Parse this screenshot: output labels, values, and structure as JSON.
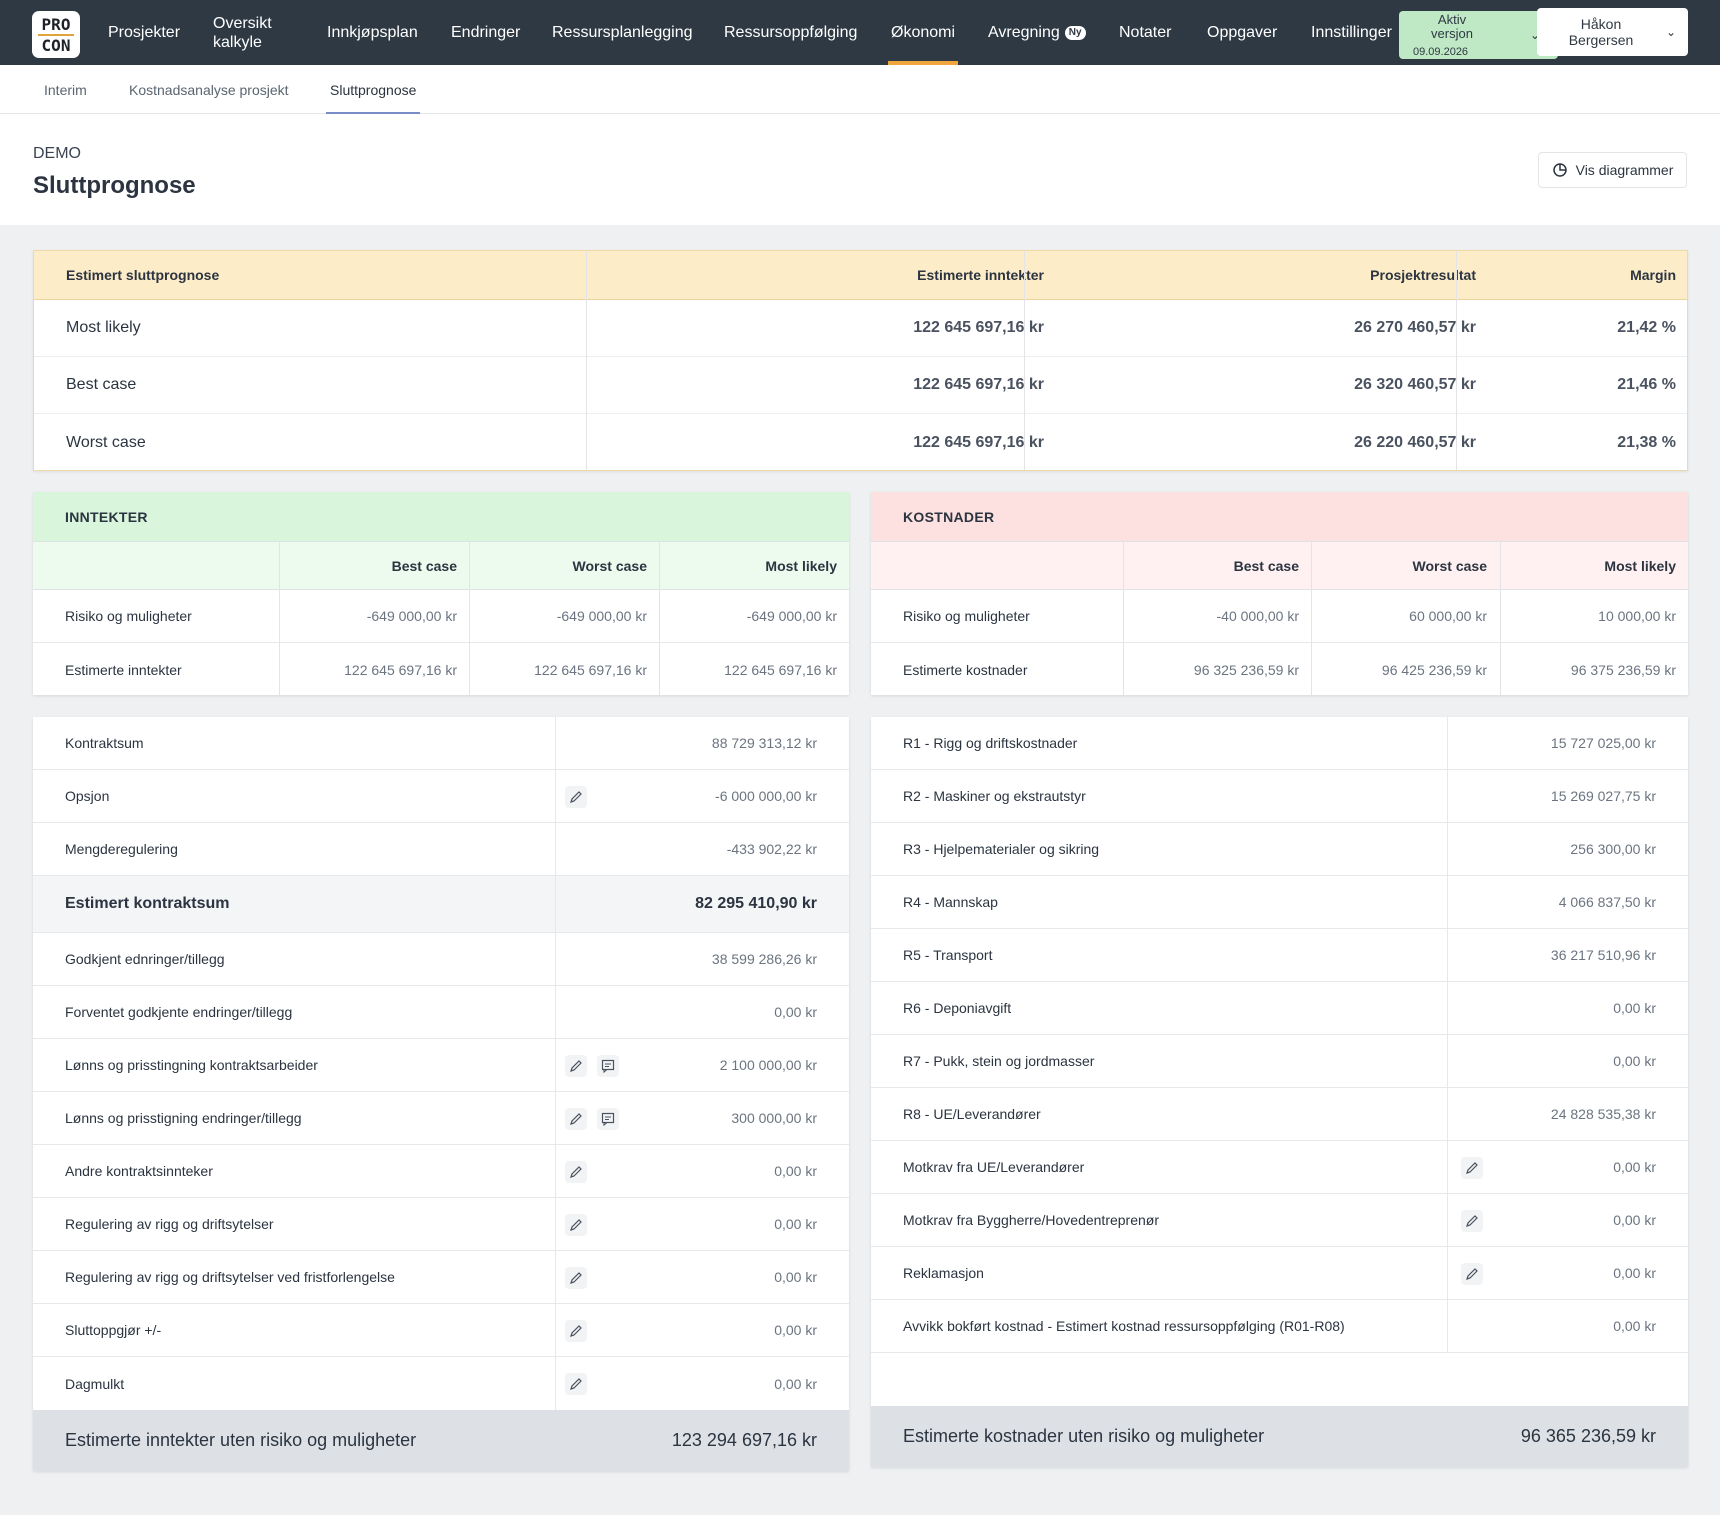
{
  "nav": {
    "logo_top": "PRO",
    "logo_bottom": "CON",
    "items": [
      "Prosjekter",
      "Oversikt kalkyle",
      "Innkjøpsplan",
      "Endringer",
      "Ressursplanlegging",
      "Ressursoppfølging",
      "Økonomi",
      "Avregning",
      "Notater",
      "Oppgaver",
      "Innstillinger"
    ],
    "badge": "Ny",
    "version_label": "Aktiv versjon",
    "version_date": "09.09.2026",
    "user_name": "Håkon Bergersen"
  },
  "subnav": {
    "tabs": [
      "Interim",
      "Kostnadsanalyse prosjekt",
      "Sluttprognose"
    ]
  },
  "header": {
    "project": "DEMO",
    "title": "Sluttprognose",
    "chart_button": "Vis diagrammer"
  },
  "summary": {
    "headers": [
      "Estimert sluttprognose",
      "Estimerte inntekter",
      "Prosjektresultat",
      "Margin"
    ],
    "rows": [
      {
        "label": "Most likely",
        "income": "122 645 697,16 kr",
        "result": "26 270 460,57 kr",
        "margin": "21,42 %"
      },
      {
        "label": "Best case",
        "income": "122 645 697,16 kr",
        "result": "26 320 460,57 kr",
        "margin": "21,46 %"
      },
      {
        "label": "Worst case",
        "income": "122 645 697,16 kr",
        "result": "26 220 460,57 kr",
        "margin": "21,38 %"
      }
    ]
  },
  "income_panel": {
    "title": "INNTEKTER",
    "headers": [
      "Best case",
      "Worst case",
      "Most likely"
    ],
    "rows": [
      {
        "label": "Risiko og muligheter",
        "best": "-649 000,00 kr",
        "worst": "-649 000,00 kr",
        "likely": "-649 000,00 kr"
      },
      {
        "label": "Estimerte inntekter",
        "best": "122 645 697,16 kr",
        "worst": "122 645 697,16 kr",
        "likely": "122 645 697,16 kr"
      }
    ]
  },
  "cost_panel": {
    "title": "KOSTNADER",
    "headers": [
      "Best case",
      "Worst case",
      "Most likely"
    ],
    "rows": [
      {
        "label": "Risiko og muligheter",
        "best": "-40 000,00 kr",
        "worst": "60 000,00 kr",
        "likely": "10 000,00 kr"
      },
      {
        "label": "Estimerte kostnader",
        "best": "96 325 236,59 kr",
        "worst": "96 425 236,59 kr",
        "likely": "96 375 236,59 kr"
      }
    ]
  },
  "income_list": {
    "rows": [
      {
        "label": "Kontraktsum",
        "value": "88 729 313,12 kr"
      },
      {
        "label": "Opsjon",
        "value": "-6 000 000,00 kr"
      },
      {
        "label": "Mengderegulering",
        "value": "-433 902,22 kr"
      },
      {
        "label": "Estimert kontraktsum",
        "value": "82 295 410,90 kr"
      },
      {
        "label": "Godkjent ednringer/tillegg",
        "value": "38 599 286,26 kr"
      },
      {
        "label": "Forventet godkjente endringer/tillegg",
        "value": "0,00 kr"
      },
      {
        "label": "Lønns og prisstingning kontraktsarbeider",
        "value": "2 100 000,00 kr"
      },
      {
        "label": "Lønns og prisstigning endringer/tillegg",
        "value": "300 000,00 kr"
      },
      {
        "label": "Andre kontraktsinnteker",
        "value": "0,00 kr"
      },
      {
        "label": "Regulering av rigg og driftsytelser",
        "value": "0,00 kr"
      },
      {
        "label": "Regulering av rigg og driftsytelser ved fristforlengelse",
        "value": "0,00 kr"
      },
      {
        "label": "Sluttoppgjør +/-",
        "value": "0,00 kr"
      },
      {
        "label": "Dagmulkt",
        "value": "0,00 kr"
      }
    ],
    "total_label": "Estimerte inntekter uten risiko og muligheter",
    "total_value": "123 294 697,16 kr"
  },
  "cost_list": {
    "rows": [
      {
        "label": "R1 - Rigg og driftskostnader",
        "value": "15 727 025,00 kr"
      },
      {
        "label": "R2 - Maskiner og ekstrautstyr",
        "value": "15 269 027,75 kr"
      },
      {
        "label": "R3 - Hjelpematerialer og sikring",
        "value": "256 300,00 kr"
      },
      {
        "label": "R4 - Mannskap",
        "value": "4 066 837,50 kr"
      },
      {
        "label": "R5 - Transport",
        "value": "36 217 510,96 kr"
      },
      {
        "label": "R6 - Deponiavgift",
        "value": "0,00 kr"
      },
      {
        "label": "R7 - Pukk, stein og jordmasser",
        "value": "0,00 kr"
      },
      {
        "label": "R8 - UE/Leverandører",
        "value": "24 828 535,38 kr"
      },
      {
        "label": "Motkrav fra UE/Leverandører",
        "value": "0,00 kr"
      },
      {
        "label": "Motkrav fra Byggherre/Hovedentreprenør",
        "value": "0,00 kr"
      },
      {
        "label": "Reklamasjon",
        "value": "0,00 kr"
      },
      {
        "label": "Avvikk bokført kostnad - Estimert kostnad ressursoppfølging (R01-R08)",
        "value": "0,00 kr"
      }
    ],
    "total_label": "Estimerte kostnader uten risiko og muligheter",
    "total_value": "96 365 236,59 kr"
  },
  "colors": {
    "nav_bg": "#2f3943",
    "accent": "#f0a63c",
    "summary_header": "#fdecc8",
    "income_header": "#d9f5dc",
    "cost_header": "#fde0e0"
  }
}
